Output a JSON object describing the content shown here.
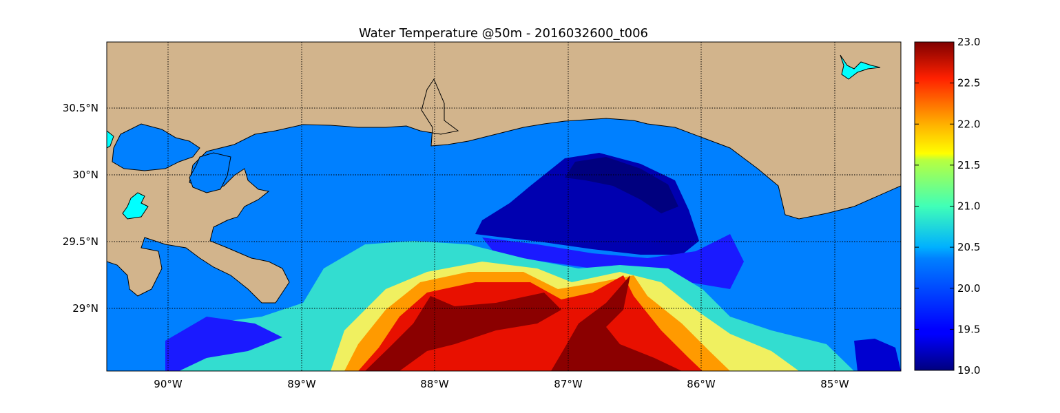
{
  "chart_data": {
    "type": "heatmap",
    "title": "Water Temperature @50m - 2016032600_t006",
    "xlim": [
      -90.5,
      -84.5
    ],
    "ylim": [
      28.55,
      31.0
    ],
    "x_ticks": [
      {
        "value": -90,
        "label": "90°W"
      },
      {
        "value": -89,
        "label": "89°W"
      },
      {
        "value": -88,
        "label": "88°W"
      },
      {
        "value": -87,
        "label": "87°W"
      },
      {
        "value": -86,
        "label": "86°W"
      },
      {
        "value": -85,
        "label": "85°W"
      }
    ],
    "y_ticks": [
      {
        "value": 30.5,
        "label": "30.5°N"
      },
      {
        "value": 30.0,
        "label": "30°N"
      },
      {
        "value": 29.5,
        "label": "29.5°N"
      },
      {
        "value": 29.0,
        "label": "29°N"
      }
    ],
    "grid": true,
    "colorbar": {
      "min": 19.0,
      "max": 23.0,
      "ticks": [
        {
          "value": 23.0,
          "label": "23.0"
        },
        {
          "value": 22.5,
          "label": "22.5"
        },
        {
          "value": 22.0,
          "label": "22.0"
        },
        {
          "value": 21.5,
          "label": "21.5"
        },
        {
          "value": 21.0,
          "label": "21.0"
        },
        {
          "value": 20.5,
          "label": "20.5"
        },
        {
          "value": 20.0,
          "label": "20.0"
        },
        {
          "value": 19.5,
          "label": "19.5"
        },
        {
          "value": 19.0,
          "label": "19.0"
        }
      ],
      "colormap": "jet"
    },
    "colors": {
      "land": "#d2b48c",
      "water_nodata": "#0080ff",
      "lakes": "#00ffff",
      "coastline": "#000000"
    }
  }
}
